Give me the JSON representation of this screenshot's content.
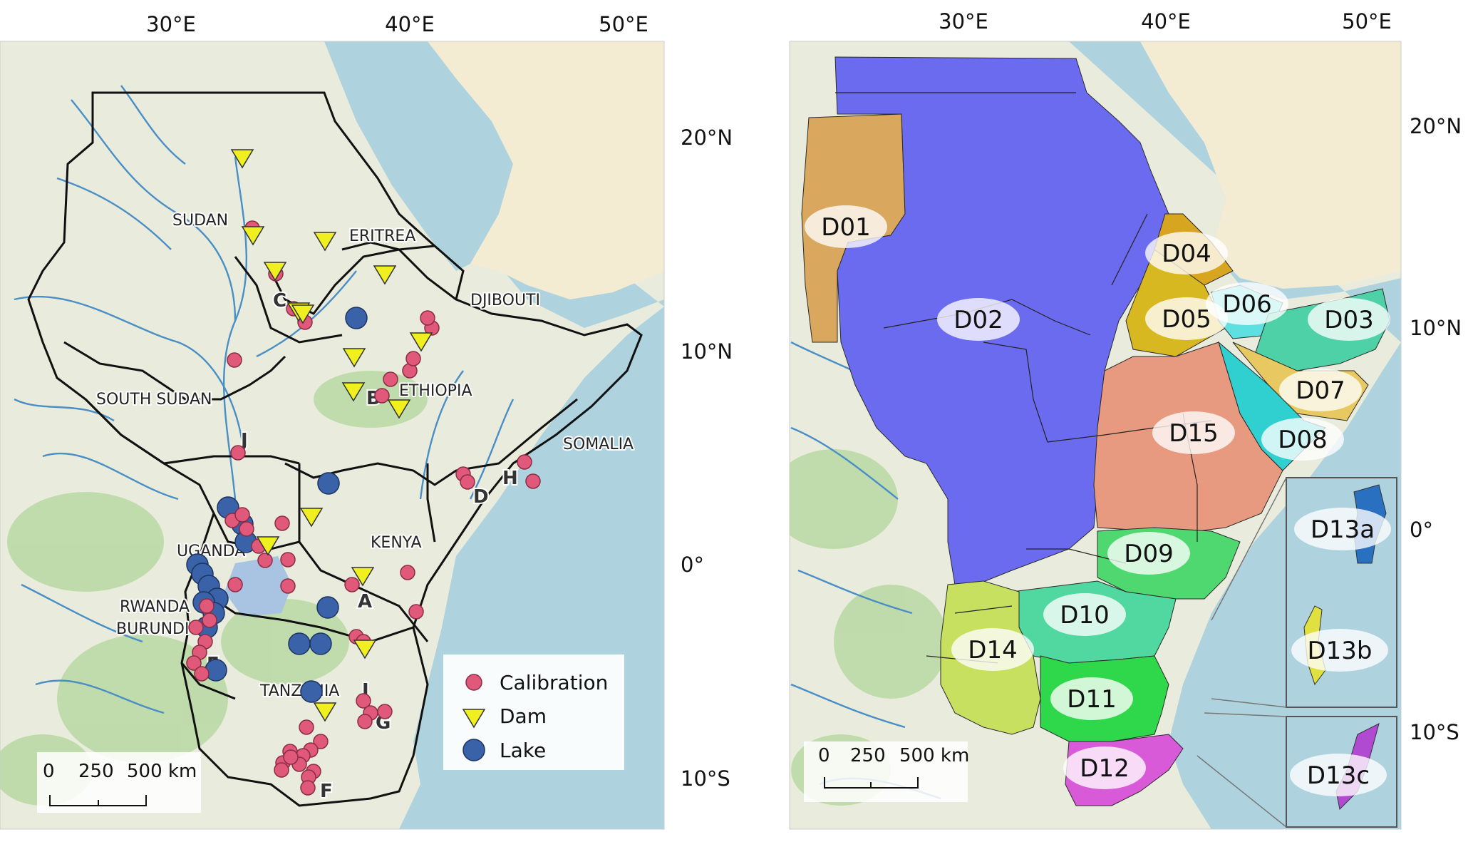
{
  "left_map": {
    "lon_ticks": [
      "30°E",
      "40°E",
      "50°E"
    ],
    "lat_ticks": [
      "20°N",
      "10°N",
      "0°",
      "10°S"
    ],
    "country_labels": [
      "SUDAN",
      "ERITREA",
      "DJIBOUTI",
      "ETHIOPIA",
      "SOUTH SUDAN",
      "SOMALIA",
      "KENYA",
      "UGANDA",
      "RWANDA",
      "BURUNDI",
      "TANZANIA"
    ],
    "region_letters": [
      "A",
      "B",
      "C",
      "D",
      "E",
      "F",
      "G",
      "H",
      "I",
      "J"
    ],
    "scale_bar": {
      "labels": [
        "0",
        "250",
        "500 km"
      ]
    },
    "legend": [
      {
        "label": "Calibration",
        "color": "#e0587a",
        "marker": "circle"
      },
      {
        "label": "Dam",
        "color": "#f0f020",
        "marker": "triangle-down"
      },
      {
        "label": "Lake",
        "color": "#3a62a8",
        "marker": "circle"
      }
    ]
  },
  "right_map": {
    "lon_ticks": [
      "30°E",
      "40°E",
      "50°E"
    ],
    "lat_ticks": [
      "20°N",
      "10°N",
      "0°",
      "10°S"
    ],
    "domains": [
      {
        "id": "D01",
        "color": "#d9a75e"
      },
      {
        "id": "D02",
        "color": "#6b6bef"
      },
      {
        "id": "D03",
        "color": "#4fd1a8"
      },
      {
        "id": "D04",
        "color": "#d8a520"
      },
      {
        "id": "D05",
        "color": "#d8b820"
      },
      {
        "id": "D06",
        "color": "#5ee0e0"
      },
      {
        "id": "D07",
        "color": "#e8c860"
      },
      {
        "id": "D08",
        "color": "#30d0d0"
      },
      {
        "id": "D09",
        "color": "#4fd870"
      },
      {
        "id": "D10",
        "color": "#50d8a0"
      },
      {
        "id": "D11",
        "color": "#2ed84a"
      },
      {
        "id": "D12",
        "color": "#d85ad8"
      },
      {
        "id": "D13a",
        "color": "#2a70c0"
      },
      {
        "id": "D13b",
        "color": "#e0e040"
      },
      {
        "id": "D13c",
        "color": "#b04ad0"
      },
      {
        "id": "D14",
        "color": "#c8e060"
      },
      {
        "id": "D15",
        "color": "#e89a80"
      }
    ],
    "scale_bar": {
      "labels": [
        "0",
        "250",
        "500 km"
      ]
    }
  }
}
